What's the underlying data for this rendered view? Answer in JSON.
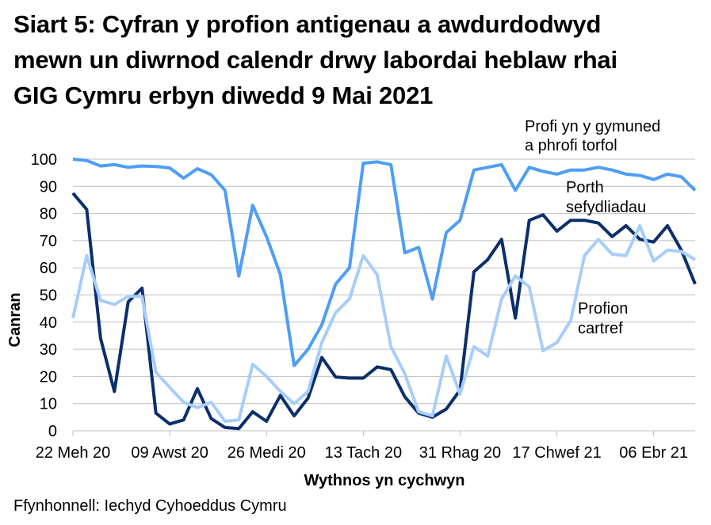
{
  "title_lines": [
    "Siart 5: Cyfran y profion antigenau a awdurdodwyd",
    "mewn un diwrnod calendr drwy labordai heblaw rhai",
    "GIG Cymru erbyn diwedd 9 Mai 2021"
  ],
  "source": "Ffynhonnell: Iechyd Cyhoeddus Cymru",
  "chart_data": {
    "type": "line",
    "title": "Siart 5: Cyfran y profion antigenau a awdurdodwyd mewn un diwrnod calendr drwy labordai heblaw rhai GIG Cymru erbyn diwedd 9 Mai 2021",
    "xlabel": "Wythnos yn cychwyn",
    "ylabel": "Canran",
    "ylim": [
      0,
      100
    ],
    "yticks": [
      0,
      10,
      20,
      30,
      40,
      50,
      60,
      70,
      80,
      90,
      100
    ],
    "grid": true,
    "legend": "inline annotations",
    "x_tick_labels": [
      "22 Meh 20",
      "09 Awst 20",
      "26 Medi 20",
      "13 Tach 20",
      "31 Rhag 20",
      "17 Chwef 21",
      "06 Ebr 21"
    ],
    "x_tick_every": 7,
    "n_points": 46,
    "series": [
      {
        "name": "Profi yn y gymuned a phrofi torfol",
        "label_lines": [
          "Profi yn y gymuned",
          "a phrofi torfol"
        ],
        "color": "#4e9ef5",
        "values": [
          100,
          99.5,
          97.5,
          98,
          97,
          97.5,
          97.3,
          96.8,
          93,
          96.5,
          94.3,
          88.5,
          57,
          83,
          71.5,
          57.5,
          24,
          30,
          39,
          54,
          60,
          98.5,
          99,
          98,
          65.5,
          67.5,
          48.5,
          73,
          77.5,
          96,
          97,
          98,
          88.5,
          97,
          95.5,
          94.5,
          96,
          96,
          97,
          96,
          94.5,
          94,
          92.5,
          94.5,
          93.5,
          88.5
        ]
      },
      {
        "name": "Porth sefydliadau",
        "label_lines": [
          "Porth",
          "sefydliadau"
        ],
        "color": "#0b2f6b",
        "values": [
          87.5,
          81.5,
          34,
          14.5,
          47.5,
          52.5,
          6.5,
          2.5,
          4,
          15.5,
          4.5,
          1.2,
          0.8,
          7,
          3.5,
          13,
          5.5,
          12,
          27,
          19.8,
          19.4,
          19.4,
          23.5,
          22.5,
          12.5,
          6.5,
          5,
          8,
          15,
          58.5,
          63,
          70.5,
          41.5,
          77.5,
          79.5,
          73.5,
          77.5,
          77.5,
          76.5,
          71.5,
          75.5,
          70.5,
          69.5,
          75.5,
          66.5,
          54
        ]
      },
      {
        "name": "Profion cartref",
        "label_lines": [
          "Profion",
          "cartref"
        ],
        "color": "#a7cdfb",
        "values": [
          41.5,
          64.5,
          48,
          46.5,
          49.5,
          49.5,
          21.5,
          16,
          10.5,
          8.5,
          10.5,
          3.5,
          4,
          24.5,
          20,
          14.5,
          10,
          14.5,
          32.5,
          43.5,
          48.5,
          64.5,
          57.5,
          31,
          21,
          7,
          5.5,
          27.5,
          13.5,
          31,
          27.5,
          48.5,
          57,
          53,
          29.5,
          32.5,
          40.5,
          64.5,
          70.5,
          65,
          64.5,
          75.5,
          62.5,
          66.5,
          66,
          63
        ]
      }
    ]
  }
}
